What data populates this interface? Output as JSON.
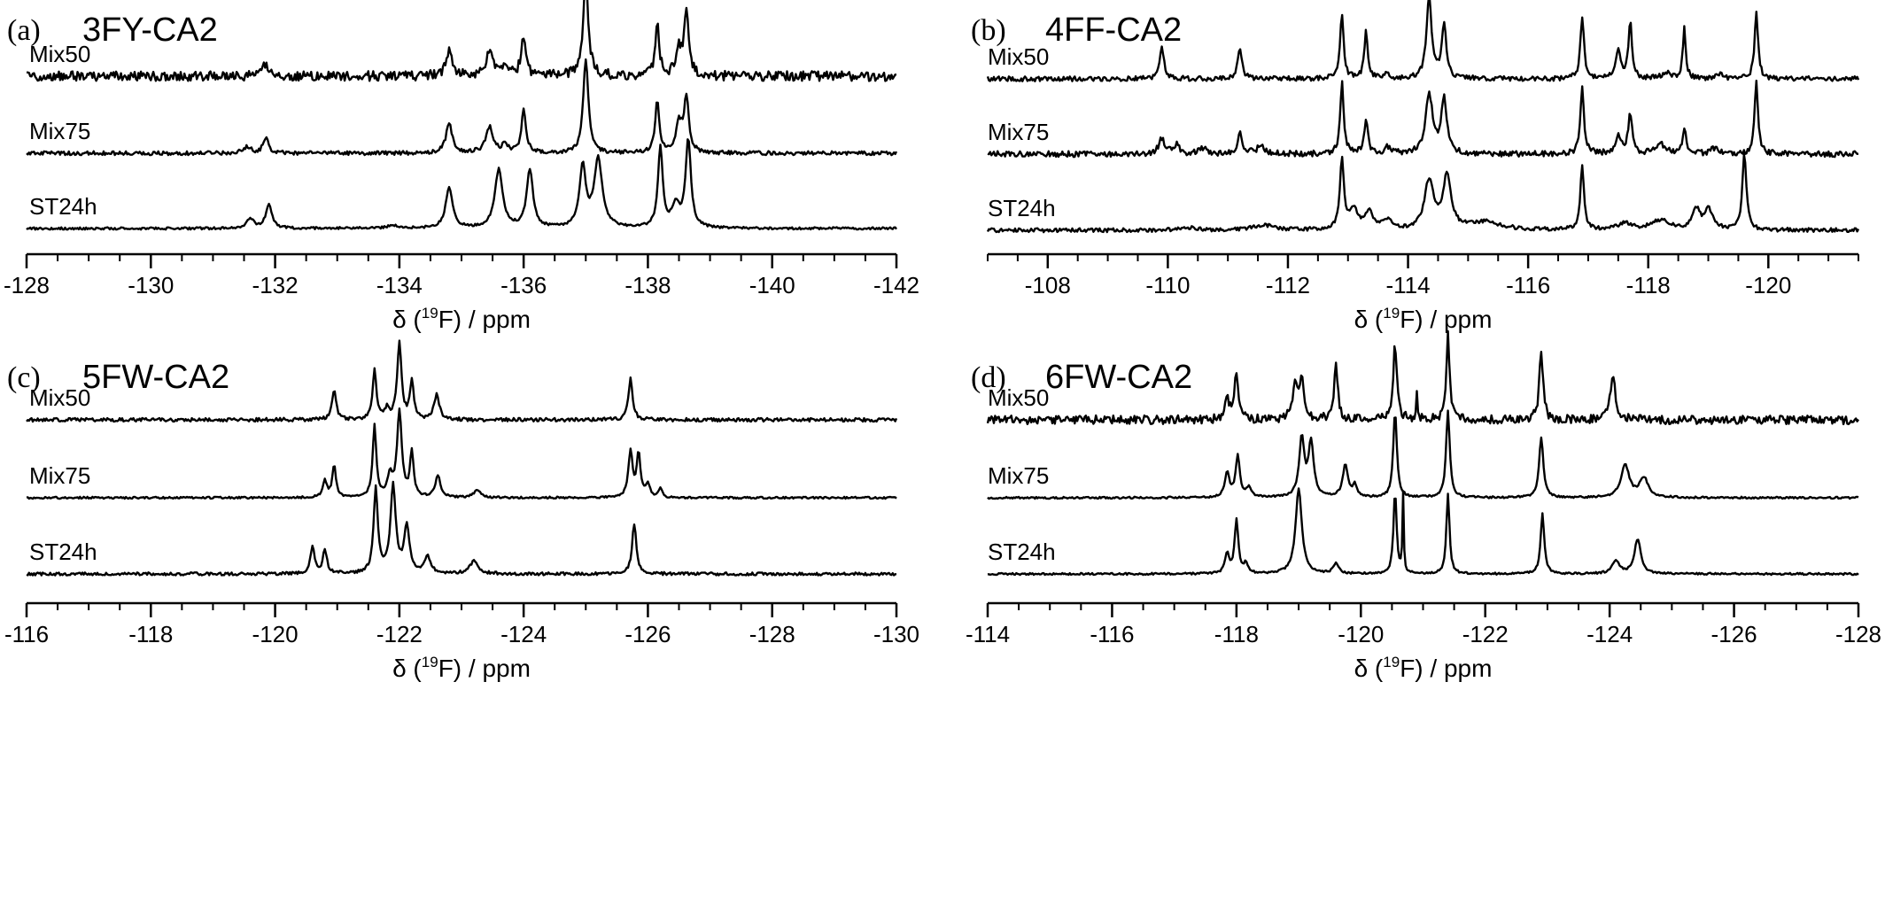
{
  "chart_data": [
    {
      "type": "line",
      "panel_letter": "(a)",
      "title": "3FY-CA2",
      "xlabel": {
        "prefix": "δ (",
        "sup": "19",
        "suffix": "F) / ppm"
      },
      "xlim": [
        -128,
        -142
      ],
      "x_reversed": true,
      "xticks": [
        -128,
        -130,
        -132,
        -134,
        -136,
        -138,
        -140,
        -142
      ],
      "minor_tick_step": 0.5,
      "series": [
        {
          "name": "Mix50",
          "noise": 0.05,
          "peaks": [
            {
              "x": -131.85,
              "h": 0.13,
              "w": 0.05
            },
            {
              "x": -134.8,
              "h": 0.27,
              "w": 0.06
            },
            {
              "x": -135.45,
              "h": 0.26,
              "w": 0.07
            },
            {
              "x": -135.7,
              "h": 0.08,
              "w": 0.05
            },
            {
              "x": -136.0,
              "h": 0.42,
              "w": 0.045
            },
            {
              "x": -137.0,
              "h": 0.97,
              "w": 0.05
            },
            {
              "x": -138.15,
              "h": 0.52,
              "w": 0.04
            },
            {
              "x": -138.5,
              "h": 0.25,
              "w": 0.06
            },
            {
              "x": -138.62,
              "h": 0.6,
              "w": 0.045
            }
          ]
        },
        {
          "name": "Mix75",
          "noise": 0.02,
          "peaks": [
            {
              "x": -131.55,
              "h": 0.07,
              "w": 0.07
            },
            {
              "x": -131.85,
              "h": 0.16,
              "w": 0.05
            },
            {
              "x": -134.8,
              "h": 0.3,
              "w": 0.06
            },
            {
              "x": -135.45,
              "h": 0.27,
              "w": 0.07
            },
            {
              "x": -135.7,
              "h": 0.09,
              "w": 0.05
            },
            {
              "x": -136.0,
              "h": 0.43,
              "w": 0.045
            },
            {
              "x": -137.0,
              "h": 0.95,
              "w": 0.05
            },
            {
              "x": -138.15,
              "h": 0.52,
              "w": 0.04
            },
            {
              "x": -138.5,
              "h": 0.3,
              "w": 0.06
            },
            {
              "x": -138.62,
              "h": 0.55,
              "w": 0.045
            }
          ]
        },
        {
          "name": "ST24h",
          "noise": 0.012,
          "peaks": [
            {
              "x": -131.6,
              "h": 0.1,
              "w": 0.07
            },
            {
              "x": -131.9,
              "h": 0.24,
              "w": 0.06
            },
            {
              "x": -133.9,
              "h": 0.03,
              "w": 0.12
            },
            {
              "x": -134.8,
              "h": 0.42,
              "w": 0.065
            },
            {
              "x": -135.6,
              "h": 0.6,
              "w": 0.075
            },
            {
              "x": -136.1,
              "h": 0.6,
              "w": 0.06
            },
            {
              "x": -136.95,
              "h": 0.62,
              "w": 0.06
            },
            {
              "x": -137.2,
              "h": 0.7,
              "w": 0.08
            },
            {
              "x": -138.2,
              "h": 0.82,
              "w": 0.045
            },
            {
              "x": -138.45,
              "h": 0.22,
              "w": 0.08
            },
            {
              "x": -138.65,
              "h": 0.9,
              "w": 0.05
            }
          ]
        }
      ]
    },
    {
      "type": "line",
      "panel_letter": "(b)",
      "title": "4FF-CA2",
      "xlabel": {
        "prefix": "δ (",
        "sup": "19",
        "suffix": "F) / ppm"
      },
      "xlim": [
        -107,
        -121.5
      ],
      "x_reversed": true,
      "xticks": [
        -108,
        -110,
        -112,
        -114,
        -116,
        -118,
        -120
      ],
      "minor_tick_step": 0.5,
      "series": [
        {
          "name": "Mix50",
          "noise": 0.025,
          "peaks": [
            {
              "x": -109.9,
              "h": 0.35,
              "w": 0.04
            },
            {
              "x": -111.2,
              "h": 0.33,
              "w": 0.04
            },
            {
              "x": -112.9,
              "h": 0.67,
              "w": 0.035
            },
            {
              "x": -113.3,
              "h": 0.48,
              "w": 0.035
            },
            {
              "x": -113.65,
              "h": 0.05,
              "w": 0.05
            },
            {
              "x": -114.35,
              "h": 0.85,
              "w": 0.05
            },
            {
              "x": -114.6,
              "h": 0.55,
              "w": 0.045
            },
            {
              "x": -116.9,
              "h": 0.64,
              "w": 0.035
            },
            {
              "x": -117.5,
              "h": 0.3,
              "w": 0.05
            },
            {
              "x": -117.7,
              "h": 0.58,
              "w": 0.035
            },
            {
              "x": -118.3,
              "h": 0.06,
              "w": 0.08
            },
            {
              "x": -118.6,
              "h": 0.52,
              "w": 0.03
            },
            {
              "x": -119.2,
              "h": 0.05,
              "w": 0.06
            },
            {
              "x": -119.8,
              "h": 0.67,
              "w": 0.035
            }
          ]
        },
        {
          "name": "Mix75",
          "noise": 0.03,
          "peaks": [
            {
              "x": -109.9,
              "h": 0.16,
              "w": 0.06
            },
            {
              "x": -110.15,
              "h": 0.1,
              "w": 0.05
            },
            {
              "x": -110.6,
              "h": 0.06,
              "w": 0.08
            },
            {
              "x": -111.2,
              "h": 0.2,
              "w": 0.05
            },
            {
              "x": -111.55,
              "h": 0.08,
              "w": 0.08
            },
            {
              "x": -112.9,
              "h": 0.73,
              "w": 0.035
            },
            {
              "x": -113.3,
              "h": 0.33,
              "w": 0.04
            },
            {
              "x": -113.65,
              "h": 0.07,
              "w": 0.05
            },
            {
              "x": -114.35,
              "h": 0.62,
              "w": 0.07
            },
            {
              "x": -114.6,
              "h": 0.55,
              "w": 0.055
            },
            {
              "x": -116.9,
              "h": 0.67,
              "w": 0.035
            },
            {
              "x": -117.5,
              "h": 0.18,
              "w": 0.06
            },
            {
              "x": -117.7,
              "h": 0.4,
              "w": 0.04
            },
            {
              "x": -118.2,
              "h": 0.1,
              "w": 0.1
            },
            {
              "x": -118.6,
              "h": 0.28,
              "w": 0.035
            },
            {
              "x": -119.1,
              "h": 0.06,
              "w": 0.08
            },
            {
              "x": -119.8,
              "h": 0.73,
              "w": 0.035
            }
          ]
        },
        {
          "name": "ST24h",
          "noise": 0.02,
          "peaks": [
            {
              "x": -110.3,
              "h": 0.03,
              "w": 0.15
            },
            {
              "x": -111.6,
              "h": 0.05,
              "w": 0.2
            },
            {
              "x": -112.9,
              "h": 0.72,
              "w": 0.04
            },
            {
              "x": -113.1,
              "h": 0.2,
              "w": 0.08
            },
            {
              "x": -113.35,
              "h": 0.18,
              "w": 0.08
            },
            {
              "x": -113.65,
              "h": 0.1,
              "w": 0.08
            },
            {
              "x": -114.35,
              "h": 0.5,
              "w": 0.09
            },
            {
              "x": -114.65,
              "h": 0.55,
              "w": 0.08
            },
            {
              "x": -115.3,
              "h": 0.08,
              "w": 0.3
            },
            {
              "x": -116.9,
              "h": 0.66,
              "w": 0.035
            },
            {
              "x": -117.6,
              "h": 0.07,
              "w": 0.12
            },
            {
              "x": -118.2,
              "h": 0.1,
              "w": 0.2
            },
            {
              "x": -118.8,
              "h": 0.2,
              "w": 0.07
            },
            {
              "x": -119.0,
              "h": 0.22,
              "w": 0.08
            },
            {
              "x": -119.6,
              "h": 0.78,
              "w": 0.04
            }
          ]
        }
      ]
    },
    {
      "type": "line",
      "panel_letter": "(c)",
      "title": "5FW-CA2",
      "xlabel": {
        "prefix": "δ (",
        "sup": "19",
        "suffix": "F) / ppm"
      },
      "xlim": [
        -116,
        -130
      ],
      "x_reversed": true,
      "xticks": [
        -116,
        -118,
        -120,
        -122,
        -124,
        -126,
        -128,
        -130
      ],
      "minor_tick_step": 0.5,
      "series": [
        {
          "name": "Mix50",
          "noise": 0.018,
          "peaks": [
            {
              "x": -120.95,
              "h": 0.3,
              "w": 0.04
            },
            {
              "x": -121.6,
              "h": 0.52,
              "w": 0.035
            },
            {
              "x": -121.8,
              "h": 0.1,
              "w": 0.05
            },
            {
              "x": -122.0,
              "h": 0.8,
              "w": 0.04
            },
            {
              "x": -122.2,
              "h": 0.4,
              "w": 0.035
            },
            {
              "x": -122.6,
              "h": 0.25,
              "w": 0.05
            },
            {
              "x": -125.72,
              "h": 0.42,
              "w": 0.04
            }
          ]
        },
        {
          "name": "Mix75",
          "noise": 0.01,
          "peaks": [
            {
              "x": -120.8,
              "h": 0.17,
              "w": 0.04
            },
            {
              "x": -120.95,
              "h": 0.33,
              "w": 0.035
            },
            {
              "x": -121.6,
              "h": 0.73,
              "w": 0.035
            },
            {
              "x": -121.85,
              "h": 0.2,
              "w": 0.05
            },
            {
              "x": -122.0,
              "h": 0.88,
              "w": 0.045
            },
            {
              "x": -122.2,
              "h": 0.45,
              "w": 0.035
            },
            {
              "x": -122.62,
              "h": 0.22,
              "w": 0.05
            },
            {
              "x": -123.25,
              "h": 0.08,
              "w": 0.06
            },
            {
              "x": -125.72,
              "h": 0.48,
              "w": 0.04
            },
            {
              "x": -125.85,
              "h": 0.45,
              "w": 0.035
            },
            {
              "x": -126.0,
              "h": 0.14,
              "w": 0.04
            },
            {
              "x": -126.2,
              "h": 0.1,
              "w": 0.03
            }
          ]
        },
        {
          "name": "ST24h",
          "noise": 0.015,
          "peaks": [
            {
              "x": -120.6,
              "h": 0.28,
              "w": 0.04
            },
            {
              "x": -120.8,
              "h": 0.24,
              "w": 0.04
            },
            {
              "x": -121.62,
              "h": 0.87,
              "w": 0.04
            },
            {
              "x": -121.9,
              "h": 0.9,
              "w": 0.05
            },
            {
              "x": -122.12,
              "h": 0.48,
              "w": 0.05
            },
            {
              "x": -122.45,
              "h": 0.17,
              "w": 0.06
            },
            {
              "x": -123.2,
              "h": 0.13,
              "w": 0.08
            },
            {
              "x": -125.78,
              "h": 0.52,
              "w": 0.04
            }
          ]
        }
      ]
    },
    {
      "type": "line",
      "panel_letter": "(d)",
      "title": "6FW-CA2",
      "xlabel": {
        "prefix": "δ (",
        "sup": "19",
        "suffix": "F) / ppm"
      },
      "xlim": [
        -114,
        -128
      ],
      "x_reversed": true,
      "xticks": [
        -114,
        -116,
        -118,
        -120,
        -122,
        -124,
        -126,
        -128
      ],
      "minor_tick_step": 0.5,
      "series": [
        {
          "name": "Mix50",
          "noise": 0.045,
          "peaks": [
            {
              "x": -117.85,
              "h": 0.22,
              "w": 0.04
            },
            {
              "x": -118.0,
              "h": 0.5,
              "w": 0.035
            },
            {
              "x": -118.95,
              "h": 0.35,
              "w": 0.05
            },
            {
              "x": -119.05,
              "h": 0.42,
              "w": 0.04
            },
            {
              "x": -119.6,
              "h": 0.55,
              "w": 0.035
            },
            {
              "x": -120.55,
              "h": 0.78,
              "w": 0.035
            },
            {
              "x": -120.9,
              "h": 0.3,
              "w": 0.015
            },
            {
              "x": -121.4,
              "h": 0.9,
              "w": 0.03
            },
            {
              "x": -122.9,
              "h": 0.72,
              "w": 0.035
            },
            {
              "x": -124.05,
              "h": 0.45,
              "w": 0.05
            }
          ]
        },
        {
          "name": "Mix75",
          "noise": 0.01,
          "peaks": [
            {
              "x": -117.85,
              "h": 0.25,
              "w": 0.045
            },
            {
              "x": -118.02,
              "h": 0.42,
              "w": 0.04
            },
            {
              "x": -118.2,
              "h": 0.1,
              "w": 0.05
            },
            {
              "x": -119.05,
              "h": 0.6,
              "w": 0.05
            },
            {
              "x": -119.2,
              "h": 0.55,
              "w": 0.05
            },
            {
              "x": -119.75,
              "h": 0.33,
              "w": 0.05
            },
            {
              "x": -119.9,
              "h": 0.12,
              "w": 0.04
            },
            {
              "x": -120.55,
              "h": 0.88,
              "w": 0.035
            },
            {
              "x": -121.4,
              "h": 0.9,
              "w": 0.035
            },
            {
              "x": -122.9,
              "h": 0.62,
              "w": 0.04
            },
            {
              "x": -124.25,
              "h": 0.33,
              "w": 0.08
            },
            {
              "x": -124.55,
              "h": 0.2,
              "w": 0.08
            }
          ]
        },
        {
          "name": "ST24h",
          "noise": 0.01,
          "peaks": [
            {
              "x": -117.85,
              "h": 0.2,
              "w": 0.04
            },
            {
              "x": -118.0,
              "h": 0.55,
              "w": 0.035
            },
            {
              "x": -118.15,
              "h": 0.1,
              "w": 0.04
            },
            {
              "x": -119.0,
              "h": 0.88,
              "w": 0.06
            },
            {
              "x": -119.6,
              "h": 0.1,
              "w": 0.05
            },
            {
              "x": -120.55,
              "h": 0.85,
              "w": 0.03
            },
            {
              "x": -120.68,
              "h": 0.8,
              "w": 0.012
            },
            {
              "x": -121.4,
              "h": 0.82,
              "w": 0.03
            },
            {
              "x": -122.92,
              "h": 0.62,
              "w": 0.035
            },
            {
              "x": -124.1,
              "h": 0.13,
              "w": 0.07
            },
            {
              "x": -124.45,
              "h": 0.36,
              "w": 0.06
            }
          ]
        }
      ]
    }
  ]
}
